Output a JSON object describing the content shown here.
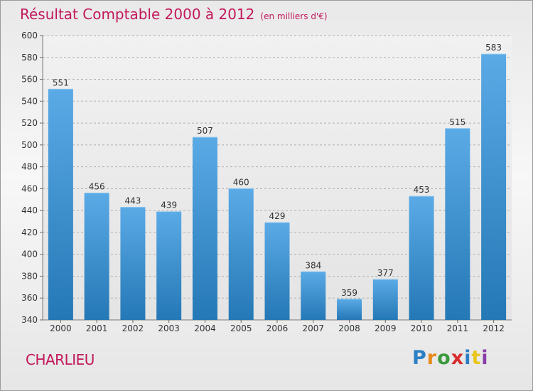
{
  "header": {
    "title": "Résultat Comptable 2000 à 2012",
    "subtitle": "(en milliers d'€)"
  },
  "location": "CHARLIEU",
  "logo": {
    "letters": [
      "P",
      "r",
      "o",
      "x",
      "i",
      "t",
      "i"
    ]
  },
  "colors": {
    "bar_top": "#5aaae6",
    "bar_bottom": "#2478b5",
    "accent": "#c2185b",
    "grid": "#b0b0b0"
  },
  "chart_data": {
    "type": "bar",
    "title": "Résultat Comptable 2000 à 2012",
    "xlabel": "",
    "ylabel": "",
    "ylim": [
      340,
      600
    ],
    "ytick_step": 20,
    "grid": true,
    "categories": [
      "2000",
      "2001",
      "2002",
      "2003",
      "2004",
      "2005",
      "2006",
      "2007",
      "2008",
      "2009",
      "2010",
      "2011",
      "2012"
    ],
    "values": [
      551,
      456,
      443,
      439,
      507,
      460,
      429,
      384,
      359,
      377,
      453,
      515,
      583
    ]
  }
}
